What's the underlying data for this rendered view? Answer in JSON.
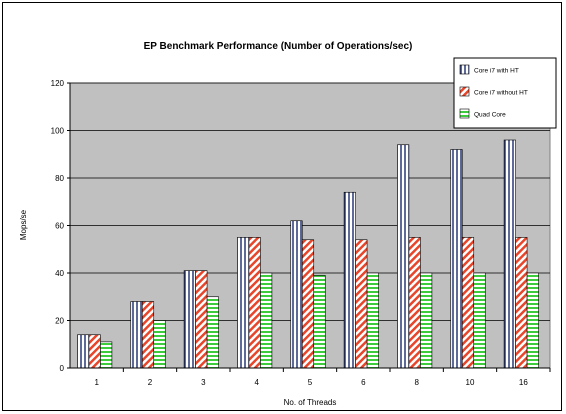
{
  "chart_data": {
    "type": "bar",
    "title": "EP Benchmark Performance (Number of Operations/sec)",
    "xlabel": "No. of Threads",
    "ylabel": "Mops/se",
    "categories": [
      "1",
      "2",
      "3",
      "4",
      "5",
      "6",
      "8",
      "10",
      "16"
    ],
    "ylim": [
      0,
      120
    ],
    "yticks": [
      0,
      20,
      40,
      60,
      80,
      100,
      120
    ],
    "grid": true,
    "legend_position": "top-right",
    "series": [
      {
        "name": "Core i7 with HT",
        "values": [
          14,
          28,
          41,
          55,
          62,
          74,
          94,
          92,
          96
        ],
        "pattern": "vertical-stripes",
        "color": "#1a2a6c"
      },
      {
        "name": "Core i7 without HT",
        "values": [
          14,
          28,
          41,
          55,
          54,
          54,
          55,
          55,
          55
        ],
        "pattern": "diagonal-stripes",
        "color": "#e8452a"
      },
      {
        "name": "Quad Core",
        "values": [
          11,
          20,
          30,
          40,
          39,
          40,
          40,
          40,
          40
        ],
        "pattern": "horizontal-stripes",
        "color": "#3ccc3c"
      }
    ],
    "plot_background": "#c0c0c0"
  }
}
